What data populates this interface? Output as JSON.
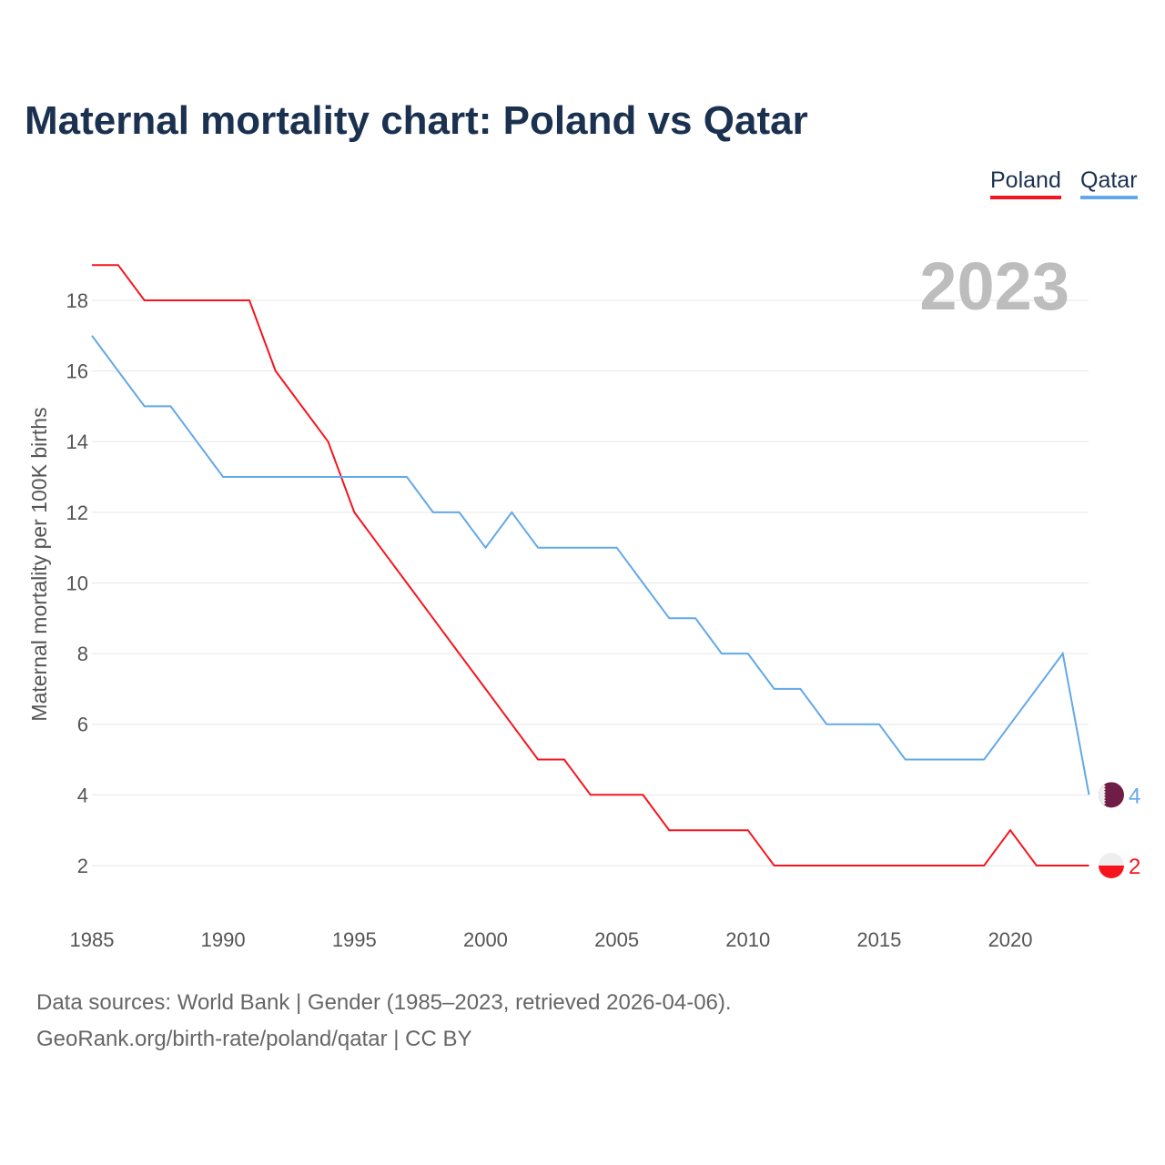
{
  "chart_data": {
    "type": "line",
    "title": "Maternal mortality chart: Poland vs Qatar",
    "ylabel": "Maternal mortality per 100K births",
    "xlabel": "",
    "year_label": "2023",
    "x": [
      1985,
      1986,
      1987,
      1988,
      1989,
      1990,
      1991,
      1992,
      1993,
      1994,
      1995,
      1996,
      1997,
      1998,
      1999,
      2000,
      2001,
      2002,
      2003,
      2004,
      2005,
      2006,
      2007,
      2008,
      2009,
      2010,
      2011,
      2012,
      2013,
      2014,
      2015,
      2016,
      2017,
      2018,
      2019,
      2020,
      2021,
      2022,
      2023
    ],
    "series": [
      {
        "name": "Poland",
        "color": "#f6141e",
        "end_label": "2",
        "values": [
          19,
          19,
          18,
          18,
          18,
          18,
          18,
          16,
          15,
          14,
          12,
          11,
          10,
          9,
          8,
          7,
          6,
          5,
          5,
          4,
          4,
          4,
          3,
          3,
          3,
          3,
          2,
          2,
          2,
          2,
          2,
          2,
          2,
          2,
          2,
          3,
          2,
          2,
          2
        ]
      },
      {
        "name": "Qatar",
        "color": "#62a8ea",
        "end_label": "4",
        "values": [
          17,
          16,
          15,
          15,
          14,
          13,
          13,
          13,
          13,
          13,
          13,
          13,
          13,
          12,
          12,
          11,
          12,
          11,
          11,
          11,
          11,
          10,
          9,
          9,
          8,
          8,
          7,
          7,
          6,
          6,
          6,
          5,
          5,
          5,
          5,
          6,
          7,
          8,
          4
        ]
      }
    ],
    "xticks": [
      "1985",
      "1990",
      "1995",
      "2000",
      "2005",
      "2010",
      "2015",
      "2020"
    ],
    "yticks": [
      "2",
      "4",
      "6",
      "8",
      "10",
      "12",
      "14",
      "16",
      "18"
    ],
    "xlim": [
      1985,
      2023
    ],
    "ylim": [
      0.5,
      19.5
    ],
    "grid": true,
    "legend_position": "top-right"
  },
  "sources": {
    "line1": "Data sources: World Bank | Gender (1985–2023, retrieved 2026-04-06).",
    "line2": "GeoRank.org/birth-rate/poland/qatar | CC BY"
  }
}
